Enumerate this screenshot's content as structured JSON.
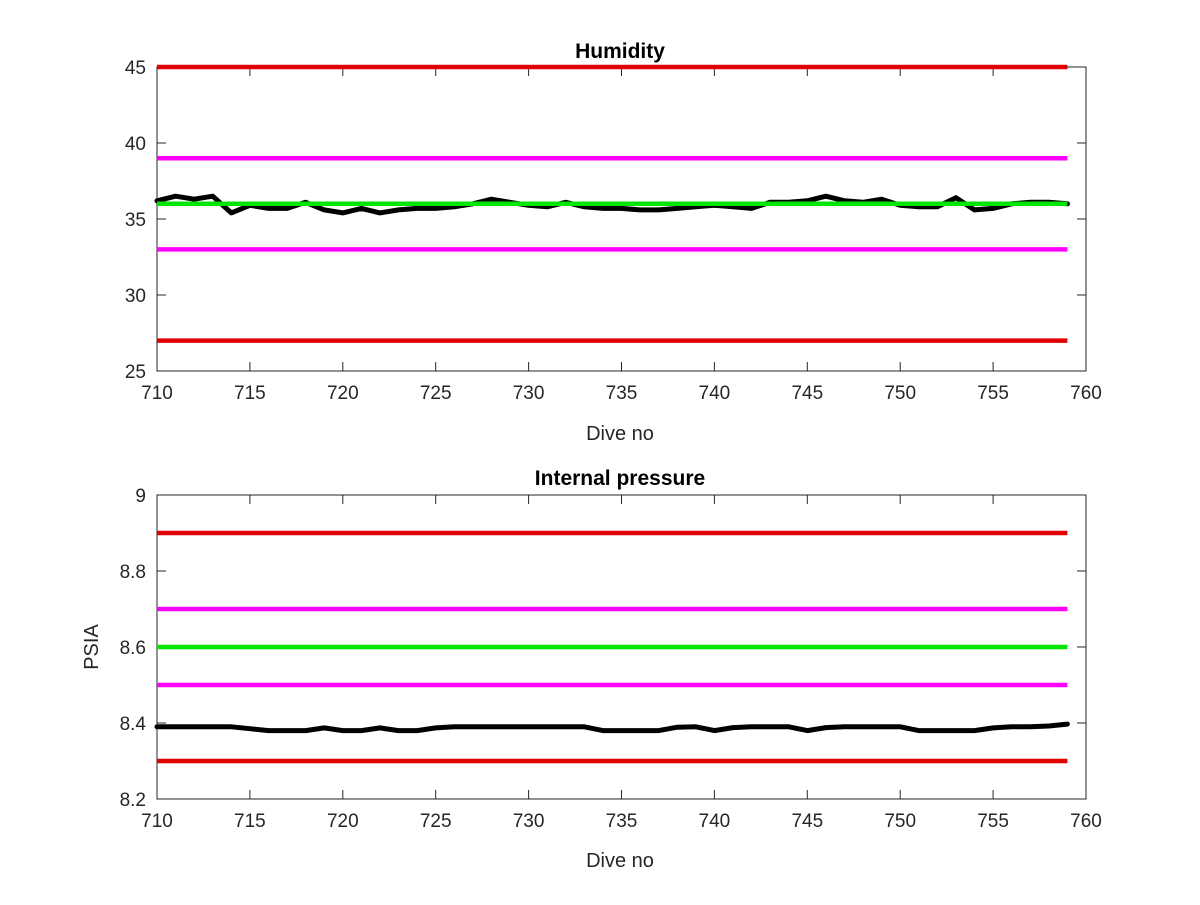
{
  "chart_data": [
    {
      "type": "line",
      "title": "Humidity",
      "xlabel": "Dive no",
      "ylabel": "",
      "xlim": [
        710,
        760
      ],
      "ylim": [
        25,
        45
      ],
      "xticks": [
        710,
        715,
        720,
        725,
        730,
        735,
        740,
        745,
        750,
        755,
        760
      ],
      "yticks": [
        25,
        30,
        35,
        40,
        45
      ],
      "grid": false,
      "thresholds": [
        {
          "y": 45,
          "color": "#e00000",
          "x": [
            710,
            759
          ]
        },
        {
          "y": 39,
          "color": "#ff00ff",
          "x": [
            710,
            759
          ]
        },
        {
          "y": 36,
          "color": "#00e600",
          "x": [
            710,
            759
          ]
        },
        {
          "y": 33,
          "color": "#ff00ff",
          "x": [
            710,
            759
          ]
        },
        {
          "y": 27,
          "color": "#e00000",
          "x": [
            710,
            759
          ]
        }
      ],
      "series": [
        {
          "color": "#000000",
          "x": [
            710,
            711,
            712,
            713,
            714,
            715,
            716,
            717,
            718,
            719,
            720,
            721,
            722,
            723,
            724,
            725,
            726,
            727,
            728,
            729,
            730,
            731,
            732,
            733,
            734,
            735,
            736,
            737,
            738,
            739,
            740,
            741,
            742,
            743,
            744,
            745,
            746,
            747,
            748,
            749,
            750,
            751,
            752,
            753,
            754,
            755,
            756,
            757,
            758,
            759
          ],
          "values": [
            36.2,
            36.5,
            36.3,
            36.5,
            35.4,
            35.9,
            35.7,
            35.7,
            36.1,
            35.6,
            35.4,
            35.7,
            35.4,
            35.6,
            35.7,
            35.7,
            35.8,
            36.0,
            36.3,
            36.1,
            35.9,
            35.8,
            36.1,
            35.8,
            35.7,
            35.7,
            35.6,
            35.6,
            35.7,
            35.8,
            35.9,
            35.8,
            35.7,
            36.1,
            36.1,
            36.2,
            36.5,
            36.2,
            36.1,
            36.3,
            35.9,
            35.8,
            35.8,
            36.4,
            35.6,
            35.7,
            36.0,
            36.1,
            36.1,
            36.0
          ]
        }
      ]
    },
    {
      "type": "line",
      "title": "Internal pressure",
      "xlabel": "Dive no",
      "ylabel": "PSIA",
      "xlim": [
        710,
        760
      ],
      "ylim": [
        8.2,
        9
      ],
      "xticks": [
        710,
        715,
        720,
        725,
        730,
        735,
        740,
        745,
        750,
        755,
        760
      ],
      "yticks": [
        8.2,
        8.4,
        8.6,
        8.8,
        9
      ],
      "grid": false,
      "thresholds": [
        {
          "y": 8.9,
          "color": "#e00000",
          "x": [
            710,
            759
          ]
        },
        {
          "y": 8.7,
          "color": "#ff00ff",
          "x": [
            710,
            759
          ]
        },
        {
          "y": 8.6,
          "color": "#00e600",
          "x": [
            710,
            759
          ]
        },
        {
          "y": 8.5,
          "color": "#ff00ff",
          "x": [
            710,
            759
          ]
        },
        {
          "y": 8.3,
          "color": "#e00000",
          "x": [
            710,
            759
          ]
        }
      ],
      "series": [
        {
          "color": "#000000",
          "x": [
            710,
            711,
            712,
            713,
            714,
            715,
            716,
            717,
            718,
            719,
            720,
            721,
            722,
            723,
            724,
            725,
            726,
            727,
            728,
            729,
            730,
            731,
            732,
            733,
            734,
            735,
            736,
            737,
            738,
            739,
            740,
            741,
            742,
            743,
            744,
            745,
            746,
            747,
            748,
            749,
            750,
            751,
            752,
            753,
            754,
            755,
            756,
            757,
            758,
            759
          ],
          "values": [
            8.39,
            8.39,
            8.39,
            8.39,
            8.39,
            8.385,
            8.38,
            8.38,
            8.38,
            8.387,
            8.38,
            8.38,
            8.387,
            8.38,
            8.38,
            8.387,
            8.39,
            8.39,
            8.39,
            8.39,
            8.39,
            8.39,
            8.39,
            8.39,
            8.38,
            8.38,
            8.38,
            8.38,
            8.389,
            8.39,
            8.38,
            8.388,
            8.39,
            8.39,
            8.39,
            8.38,
            8.388,
            8.39,
            8.39,
            8.39,
            8.39,
            8.38,
            8.38,
            8.38,
            8.38,
            8.387,
            8.39,
            8.39,
            8.392,
            8.397
          ]
        }
      ]
    }
  ]
}
